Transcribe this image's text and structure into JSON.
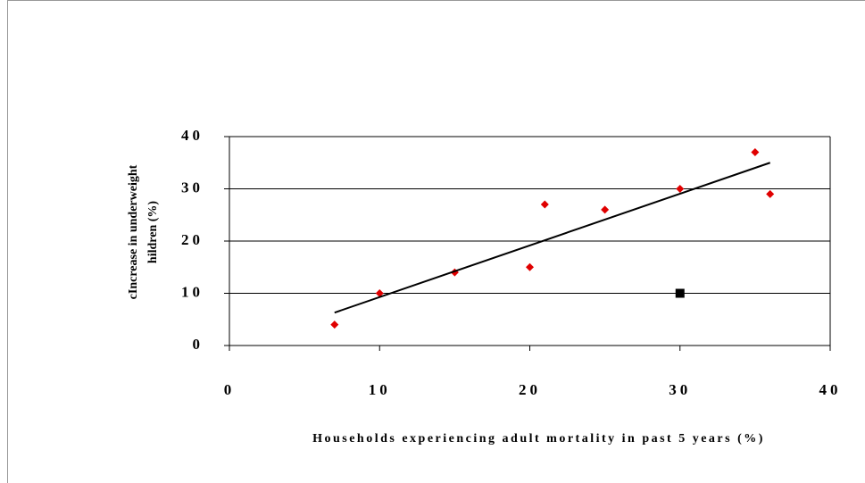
{
  "chart_data": {
    "type": "scatter",
    "xlabel": "Households experiencing adult mortality in past 5 years (%)",
    "ylabel": [
      "cIncrease in underweight",
      "hildren (%)"
    ],
    "xlim": [
      0,
      40
    ],
    "xticks": [
      0,
      10,
      20,
      30,
      40
    ],
    "ylim": [
      0,
      40
    ],
    "yticks": [
      0,
      10,
      20,
      30,
      40
    ],
    "grid": true,
    "series": [
      {
        "marker": "diamond",
        "color": "#e00000",
        "x": [
          7,
          10,
          15,
          20,
          21,
          25,
          30,
          35,
          36
        ],
        "values": [
          4,
          10,
          14,
          15,
          27,
          26,
          30,
          37,
          29
        ]
      },
      {
        "marker": "square",
        "color": "#000000",
        "x": [
          30
        ],
        "values": [
          10
        ]
      },
      {
        "marker": "line",
        "color": "#000000",
        "x": [
          7,
          36
        ],
        "values": [
          6.3,
          35
        ]
      }
    ]
  }
}
